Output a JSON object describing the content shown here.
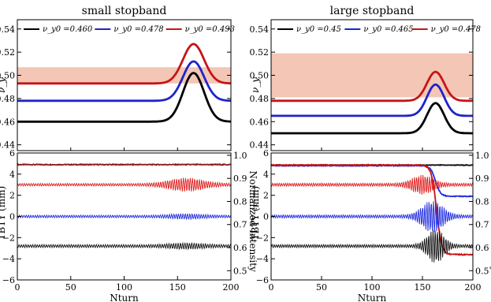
{
  "chart_data": [
    {
      "type": "line",
      "title": "small stopband",
      "xlabel": "",
      "ylabel": "ν_y",
      "xlim": [
        0,
        200
      ],
      "ylim": [
        0.435,
        0.548
      ],
      "yticks": [
        "0.44",
        "0.46",
        "0.48",
        "0.50",
        "0.52",
        "0.54"
      ],
      "stopband": {
        "ymin": 0.493,
        "ymax": 0.507,
        "color": "#f3c6b6"
      },
      "legend": [
        "ν_y0 =0.460",
        "ν_y0 =0.478",
        "ν_y0 =0.493"
      ],
      "legend_position": "top",
      "series": [
        {
          "name": "ν_y0 =0.460",
          "color": "#000000",
          "base": 0.46,
          "peak": 0.502,
          "peak_x": 165,
          "width": 14
        },
        {
          "name": "ν_y0 =0.478",
          "color": "#1f24c8",
          "base": 0.478,
          "peak": 0.512,
          "peak_x": 165,
          "width": 14
        },
        {
          "name": "ν_y0 =0.493",
          "color": "#c81414",
          "base": 0.493,
          "peak": 0.527,
          "peak_x": 165,
          "width": 14
        }
      ]
    },
    {
      "type": "line",
      "title": "large stopband",
      "xlabel": "",
      "ylabel": "ν_y",
      "xlim": [
        0,
        200
      ],
      "ylim": [
        0.435,
        0.548
      ],
      "yticks": [
        "0.44",
        "0.46",
        "0.48",
        "0.50",
        "0.52",
        "0.54"
      ],
      "stopband": {
        "ymin": 0.481,
        "ymax": 0.519,
        "color": "#f3c6b6"
      },
      "legend": [
        "ν_y0 =0.45",
        "ν_y0 =0.465",
        "ν_y0 =0.478"
      ],
      "legend_position": "top",
      "series": [
        {
          "name": "ν_y0 =0.45",
          "color": "#000000",
          "base": 0.45,
          "peak": 0.476,
          "peak_x": 163,
          "width": 12
        },
        {
          "name": "ν_y0 =0.465",
          "color": "#1f24c8",
          "base": 0.465,
          "peak": 0.492,
          "peak_x": 163,
          "width": 12
        },
        {
          "name": "ν_y0 =0.478",
          "color": "#c81414",
          "base": 0.478,
          "peak": 0.503,
          "peak_x": 163,
          "width": 12
        }
      ]
    },
    {
      "type": "line",
      "title": "",
      "xlabel": "Nturn",
      "ylabel": "TBTY (mm)",
      "ylabel_right": "Normalized Intensity",
      "xlim": [
        0,
        200
      ],
      "xticks": [
        "0",
        "50",
        "100",
        "150",
        "200"
      ],
      "ylim": [
        -6,
        6
      ],
      "yticks": [
        "−6",
        "−4",
        "−2",
        "0",
        "2",
        "4",
        "6"
      ],
      "yticks_right": [
        "0.5",
        "0.6",
        "0.7",
        "0.8",
        "0.9",
        "1.0"
      ],
      "series": [
        {
          "name": "intensity",
          "color": "#8b1a1a",
          "offset": 4.9,
          "amp": 0.08,
          "type": "flat"
        },
        {
          "name": "red TBT",
          "color": "#e01c1c",
          "offset": 3.0,
          "amp": 0.12,
          "burst_x": 158,
          "burst_amp": 0.55,
          "burst_width": 22
        },
        {
          "name": "blue TBT",
          "color": "#1f2ae0",
          "offset": 0.0,
          "amp": 0.12,
          "burst_x": 158,
          "burst_amp": 0.15,
          "burst_width": 20
        },
        {
          "name": "black TBT",
          "color": "#111111",
          "offset": -2.8,
          "amp": 0.14,
          "burst_x": 158,
          "burst_amp": 0.18,
          "burst_width": 20
        }
      ]
    },
    {
      "type": "line",
      "title": "",
      "xlabel": "Nturn",
      "ylabel": "TBTY (mm)",
      "ylabel_right": "Normalized Intensity",
      "xlim": [
        0,
        200
      ],
      "xticks": [
        "0",
        "50",
        "100",
        "150",
        "200"
      ],
      "ylim": [
        -6,
        6
      ],
      "yticks": [
        "−6",
        "−4",
        "−2",
        "0",
        "2",
        "4",
        "6"
      ],
      "yticks_right": [
        "0.5",
        "0.6",
        "0.7",
        "0.8",
        "0.9",
        "1.0"
      ],
      "series": [
        {
          "name": "black intensity",
          "color": "#111111",
          "offset": 4.85,
          "amp": 0.06,
          "type": "flat"
        },
        {
          "name": "blue intensity",
          "color": "#1f2ae0",
          "offset": 4.8,
          "amp": 0.08,
          "type": "drop",
          "drop_x": 163,
          "drop_to": 1.9,
          "drop_width": 5
        },
        {
          "name": "red intensity",
          "color": "#c81414",
          "offset": 4.85,
          "amp": 0.1,
          "type": "drop",
          "drop_x": 164,
          "drop_to": -3.6,
          "drop_width": 5
        },
        {
          "name": "red TBT",
          "color": "#e01c1c",
          "offset": 3.0,
          "amp": 0.14,
          "burst_x": 150,
          "burst_amp": 0.8,
          "burst_width": 14
        },
        {
          "name": "blue TBT",
          "color": "#1f2ae0",
          "offset": 0.0,
          "amp": 0.14,
          "burst_x": 160,
          "burst_amp": 1.4,
          "burst_width": 14
        },
        {
          "name": "black TBT",
          "color": "#111111",
          "offset": -2.8,
          "amp": 0.14,
          "burst_x": 163,
          "burst_amp": 1.5,
          "burst_width": 11
        }
      ]
    }
  ]
}
